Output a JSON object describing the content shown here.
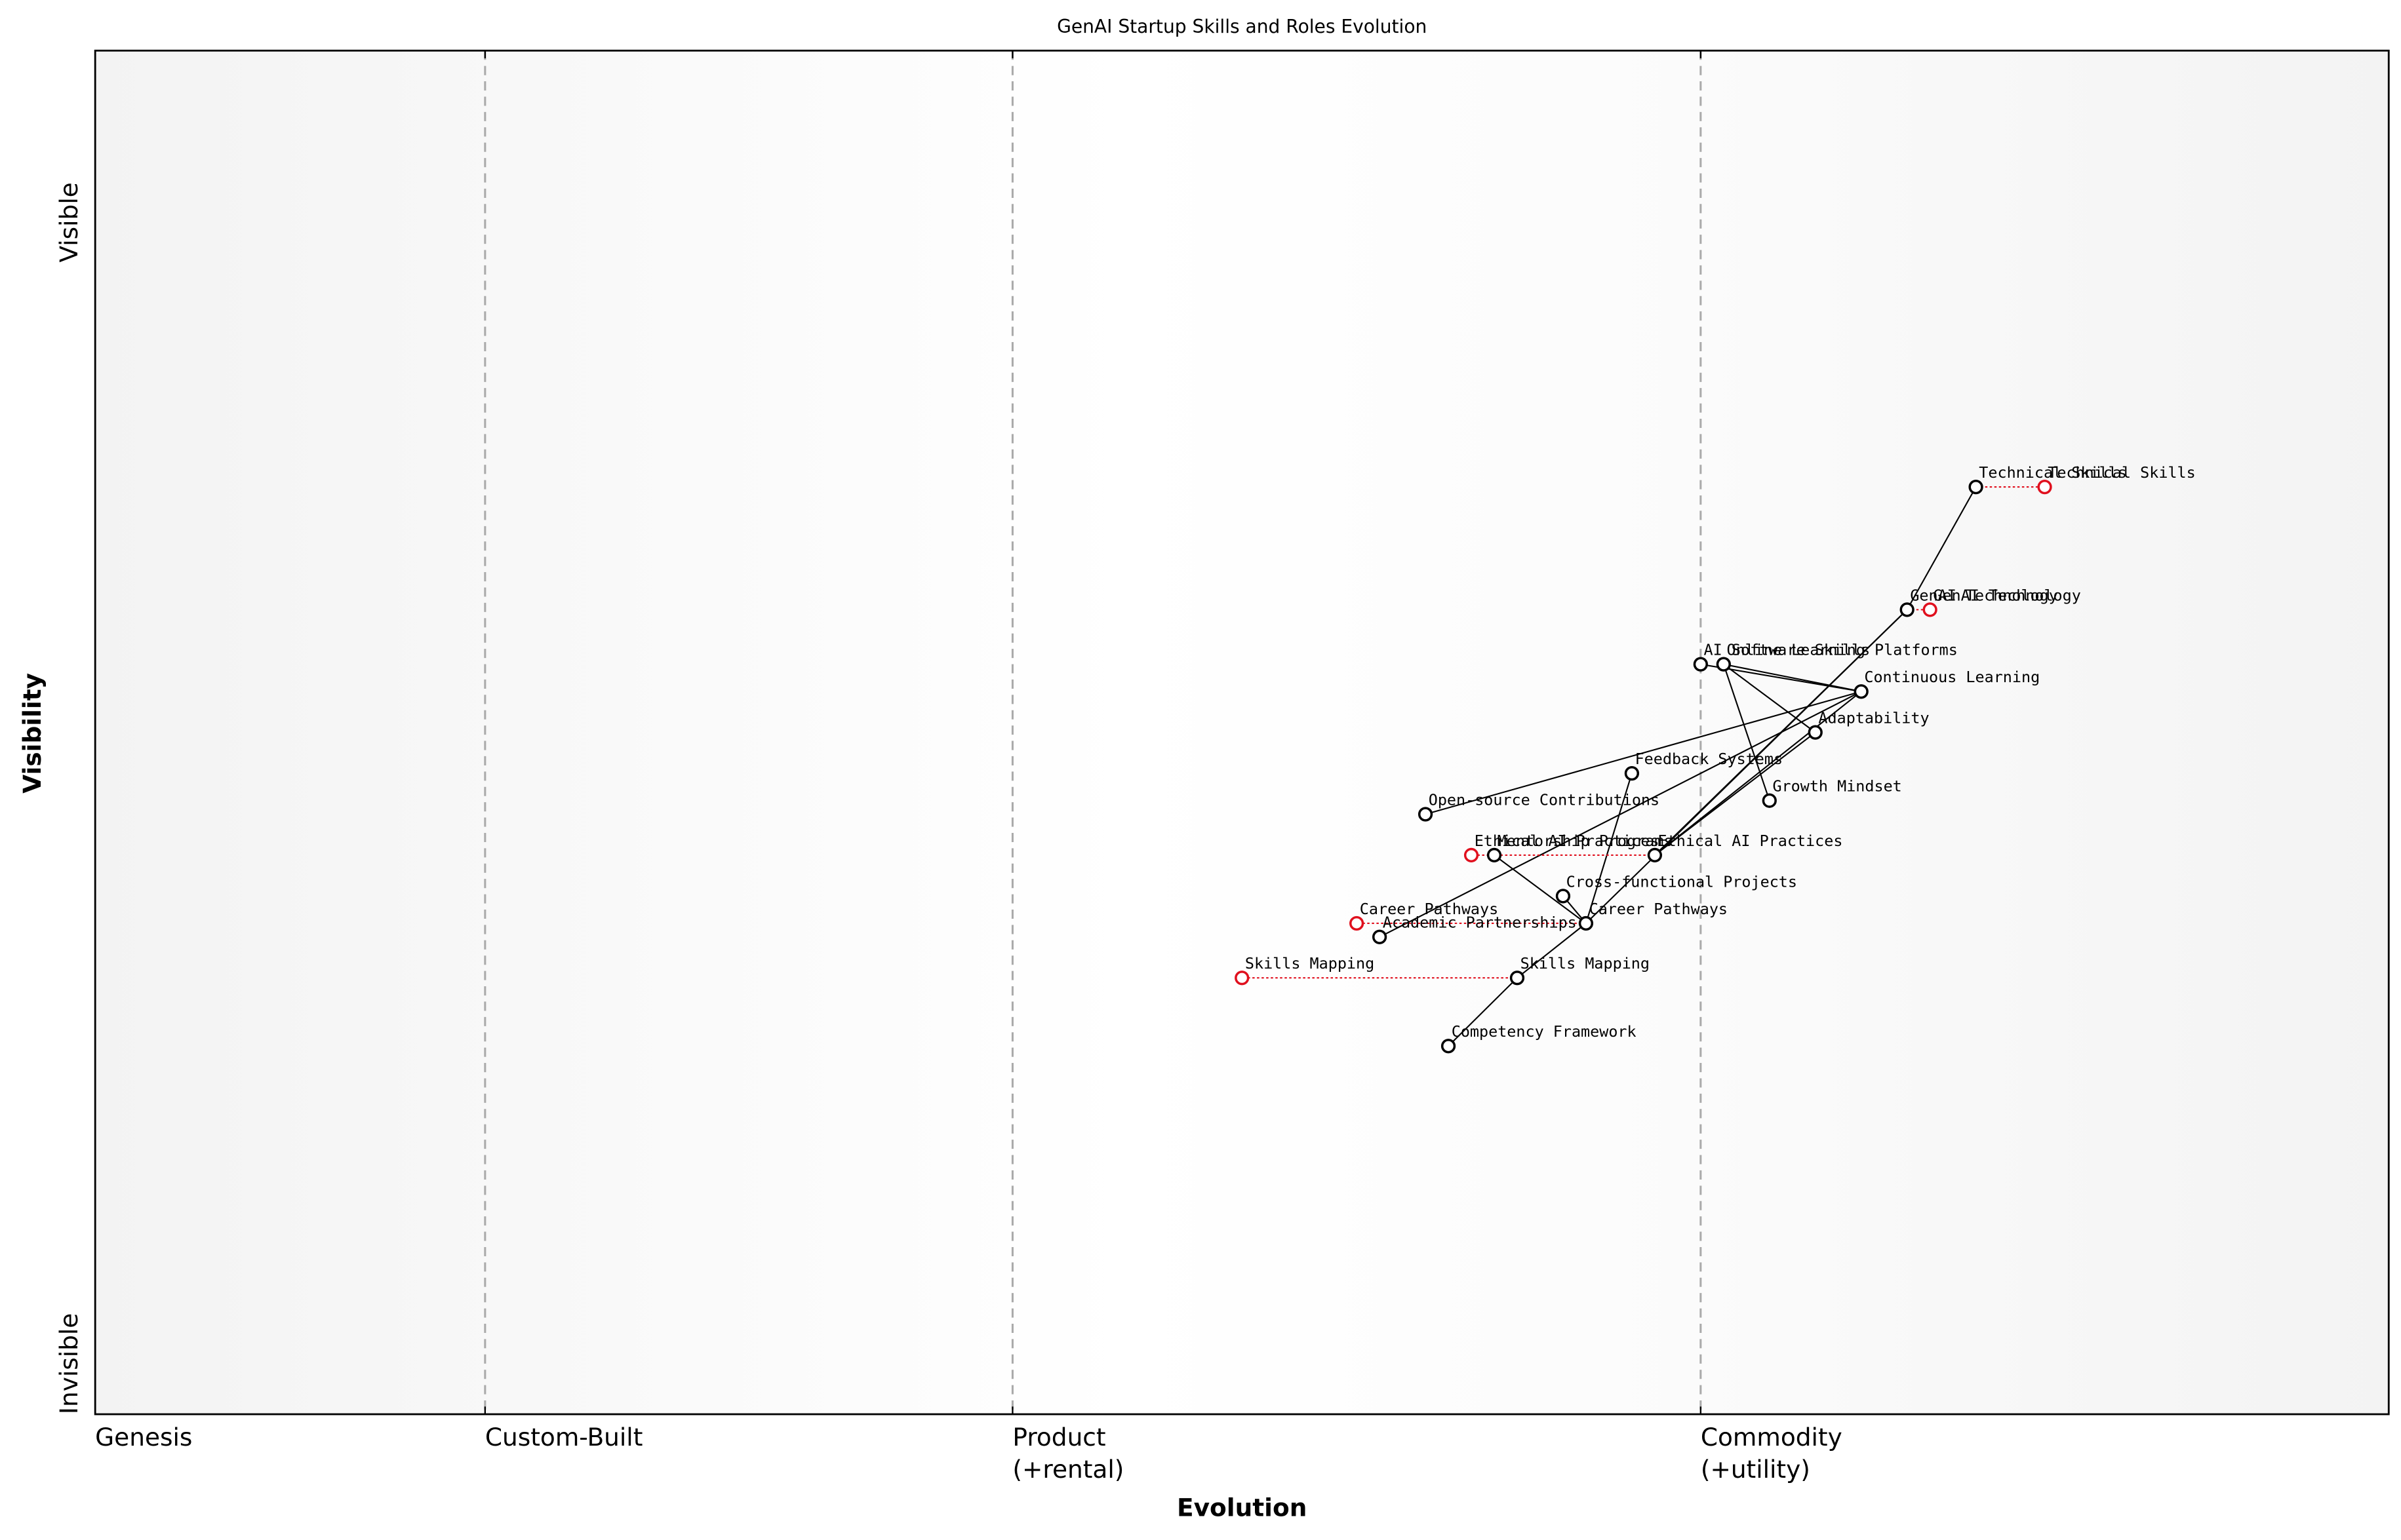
{
  "chart_data": {
    "type": "wardley",
    "title": "GenAI Startup Skills and Roles Evolution",
    "x_label": "Evolution",
    "y_label": "Visibility",
    "y_top_label": "Visible",
    "y_bottom_label": "Invisible",
    "xlim": [
      0,
      1
    ],
    "ylim": [
      0,
      1
    ],
    "xticks": [
      {
        "value": 0,
        "label": "Genesis"
      },
      {
        "value": 0.17,
        "label": "Custom-Built"
      },
      {
        "value": 0.4,
        "label": "Product",
        "sublabel": "(+rental)"
      },
      {
        "value": 0.7,
        "label": "Commodity",
        "sublabel": "(+utility)"
      }
    ],
    "nodes": [
      {
        "name": "Technical Skills",
        "x": 0.82,
        "y": 0.68,
        "evolve_x": 0.85
      },
      {
        "name": "GenAI Technology",
        "x": 0.79,
        "y": 0.59,
        "evolve_x": 0.8
      },
      {
        "name": "AI Software Skills",
        "x": 0.7,
        "y": 0.55
      },
      {
        "name": "Online Learning Platforms",
        "x": 0.71,
        "y": 0.55
      },
      {
        "name": "Continuous Learning",
        "x": 0.77,
        "y": 0.53
      },
      {
        "name": "Adaptability",
        "x": 0.75,
        "y": 0.5
      },
      {
        "name": "Feedback Systems",
        "x": 0.67,
        "y": 0.47
      },
      {
        "name": "Growth Mindset",
        "x": 0.73,
        "y": 0.45
      },
      {
        "name": "Open-source Contributions",
        "x": 0.58,
        "y": 0.44
      },
      {
        "name": "Mentorship Programs",
        "x": 0.61,
        "y": 0.41
      },
      {
        "name": "Ethical AI Practices",
        "x": 0.68,
        "y": 0.41,
        "evolve_x": 0.6
      },
      {
        "name": "Cross-functional Projects",
        "x": 0.64,
        "y": 0.38
      },
      {
        "name": "Career Pathways",
        "x": 0.65,
        "y": 0.36,
        "evolve_x": 0.55
      },
      {
        "name": "Academic Partnerships",
        "x": 0.56,
        "y": 0.35
      },
      {
        "name": "Skills Mapping",
        "x": 0.62,
        "y": 0.32,
        "evolve_x": 0.5
      },
      {
        "name": "Competency Framework",
        "x": 0.59,
        "y": 0.27
      }
    ],
    "links": [
      [
        0,
        1
      ],
      [
        1,
        10
      ],
      [
        1,
        12
      ],
      [
        2,
        4
      ],
      [
        3,
        4
      ],
      [
        3,
        7
      ],
      [
        3,
        5
      ],
      [
        4,
        8
      ],
      [
        4,
        13
      ],
      [
        4,
        10
      ],
      [
        5,
        10
      ],
      [
        6,
        12
      ],
      [
        9,
        12
      ],
      [
        12,
        11
      ],
      [
        12,
        14
      ],
      [
        14,
        15
      ]
    ],
    "node_color": "#000000",
    "evolve_color": "#e0101e"
  }
}
